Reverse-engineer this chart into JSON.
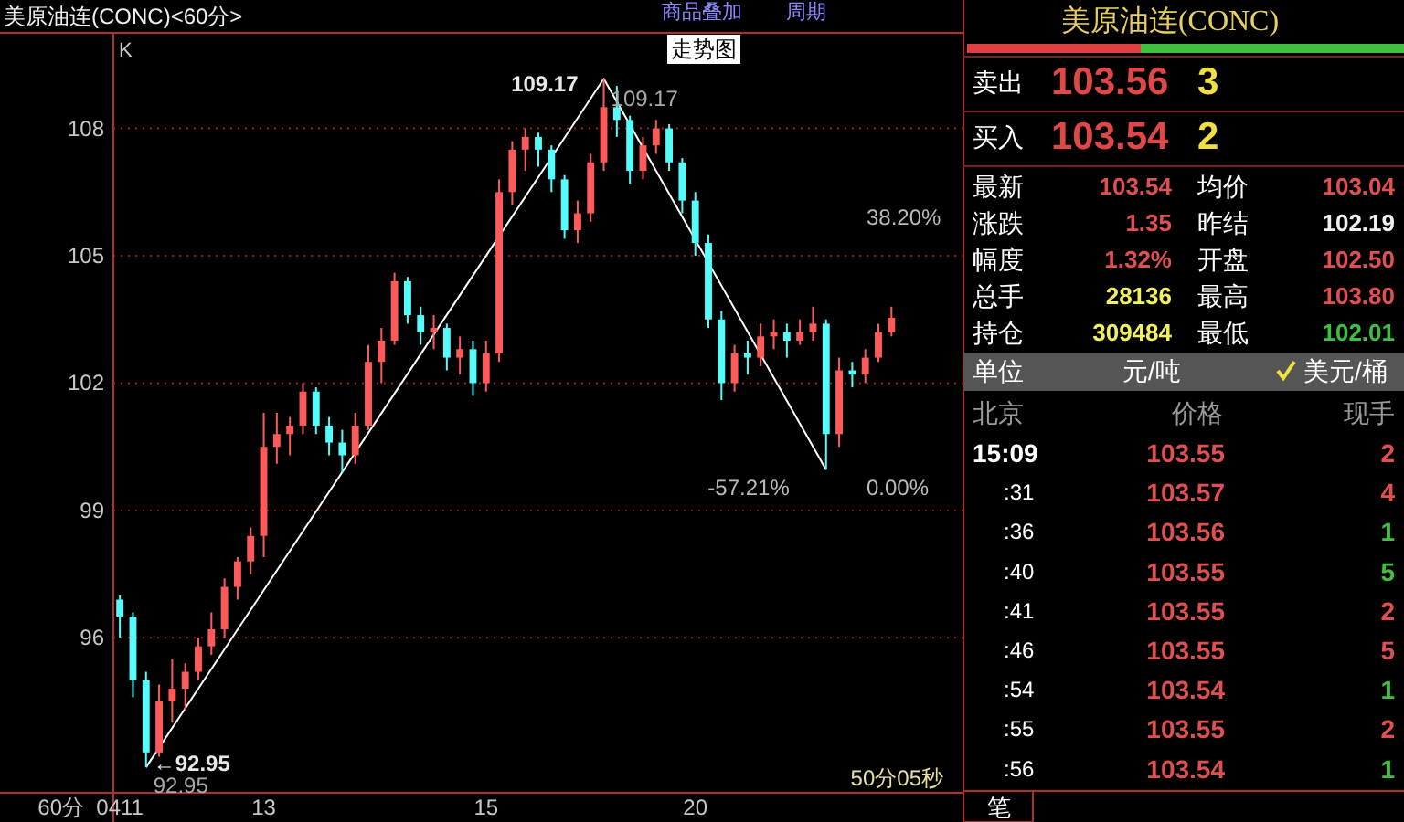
{
  "chart_data": [
    {
      "type": "candlestick",
      "title": "美原油连(CONC)<60分>",
      "xlabel": "60分",
      "categories": [
        "0411",
        null,
        null,
        null,
        null,
        null,
        null,
        null,
        null,
        null,
        null,
        "13",
        null,
        null,
        null,
        null,
        null,
        null,
        null,
        null,
        null,
        null,
        null,
        null,
        null,
        null,
        null,
        null,
        "15",
        null,
        null,
        null,
        null,
        null,
        null,
        null,
        null,
        null,
        null,
        null,
        null,
        null,
        null,
        null,
        "20",
        null,
        null,
        null,
        null,
        null,
        null,
        null,
        null,
        null,
        null,
        null,
        null,
        null,
        null,
        null,
        null,
        null,
        null,
        null,
        null
      ],
      "ohlc": [
        [
          96.9,
          97.0,
          96.0,
          96.5
        ],
        [
          96.5,
          96.6,
          94.6,
          95.0
        ],
        [
          95.0,
          95.2,
          92.95,
          93.3
        ],
        [
          93.3,
          94.9,
          93.2,
          94.5
        ],
        [
          94.5,
          95.5,
          94.0,
          94.8
        ],
        [
          94.8,
          95.4,
          94.3,
          95.2
        ],
        [
          95.2,
          96.0,
          95.0,
          95.8
        ],
        [
          95.8,
          96.6,
          95.6,
          96.2
        ],
        [
          96.2,
          97.4,
          96.0,
          97.2
        ],
        [
          97.2,
          97.9,
          96.9,
          97.8
        ],
        [
          97.8,
          98.6,
          97.5,
          98.4
        ],
        [
          98.4,
          101.3,
          97.9,
          100.5
        ],
        [
          100.5,
          101.3,
          100.1,
          100.8
        ],
        [
          100.8,
          101.2,
          100.3,
          101.0
        ],
        [
          101.0,
          102.0,
          100.8,
          101.8
        ],
        [
          101.8,
          101.9,
          100.8,
          101.0
        ],
        [
          101.0,
          101.2,
          100.3,
          100.6
        ],
        [
          100.6,
          100.9,
          99.9,
          100.3
        ],
        [
          100.3,
          101.3,
          100.1,
          101.0
        ],
        [
          101.0,
          102.9,
          100.9,
          102.5
        ],
        [
          102.5,
          103.3,
          102.0,
          103.0
        ],
        [
          103.0,
          104.6,
          102.9,
          104.4
        ],
        [
          104.4,
          104.5,
          103.4,
          103.6
        ],
        [
          103.6,
          103.8,
          102.9,
          103.2
        ],
        [
          103.2,
          103.6,
          102.8,
          103.3
        ],
        [
          103.3,
          103.4,
          102.3,
          102.6
        ],
        [
          102.6,
          103.1,
          102.2,
          102.8
        ],
        [
          102.8,
          103.0,
          101.7,
          102.0
        ],
        [
          102.0,
          103.0,
          101.8,
          102.7
        ],
        [
          102.7,
          106.8,
          102.5,
          106.5
        ],
        [
          106.5,
          107.7,
          106.2,
          107.5
        ],
        [
          107.5,
          108.0,
          107.0,
          107.8
        ],
        [
          107.8,
          107.9,
          107.1,
          107.5
        ],
        [
          107.5,
          107.6,
          106.5,
          106.8
        ],
        [
          106.8,
          106.9,
          105.4,
          105.6
        ],
        [
          105.6,
          106.3,
          105.3,
          106.0
        ],
        [
          106.0,
          107.4,
          105.8,
          107.2
        ],
        [
          107.2,
          109.17,
          107.0,
          108.5
        ],
        [
          108.5,
          109.0,
          107.8,
          108.2
        ],
        [
          108.2,
          108.3,
          106.7,
          107.0
        ],
        [
          107.0,
          107.8,
          106.8,
          107.6
        ],
        [
          107.6,
          108.2,
          107.4,
          108.0
        ],
        [
          108.0,
          108.1,
          107.0,
          107.2
        ],
        [
          107.2,
          107.3,
          106.0,
          106.3
        ],
        [
          106.3,
          106.5,
          105.0,
          105.3
        ],
        [
          105.3,
          105.5,
          103.3,
          103.5
        ],
        [
          103.5,
          103.7,
          101.6,
          102.0
        ],
        [
          102.0,
          102.9,
          101.8,
          102.7
        ],
        [
          102.7,
          103.0,
          102.2,
          102.6
        ],
        [
          102.6,
          103.4,
          102.4,
          103.1
        ],
        [
          103.1,
          103.5,
          102.8,
          103.2
        ],
        [
          103.2,
          103.4,
          102.6,
          103.0
        ],
        [
          103.0,
          103.5,
          102.9,
          103.2
        ],
        [
          103.2,
          103.8,
          103.0,
          103.4
        ],
        [
          103.4,
          103.5,
          99.96,
          100.8
        ],
        [
          100.8,
          102.6,
          100.5,
          102.3
        ],
        [
          102.3,
          102.5,
          101.9,
          102.2
        ],
        [
          102.2,
          102.8,
          102.0,
          102.6
        ],
        [
          102.6,
          103.4,
          102.5,
          103.2
        ],
        [
          103.2,
          103.8,
          103.1,
          103.54
        ],
        null,
        null,
        null,
        null,
        null
      ],
      "series": [
        {
          "type": "line",
          "color": "#ffffff",
          "values": [
            null,
            null,
            92.95,
            null,
            null,
            null,
            null,
            null,
            null,
            null,
            null,
            null,
            null,
            null,
            null,
            null,
            null,
            null,
            null,
            null,
            null,
            null,
            null,
            null,
            null,
            null,
            null,
            null,
            null,
            null,
            null,
            null,
            null,
            null,
            null,
            null,
            null,
            109.17,
            null,
            null,
            null,
            null,
            null,
            null,
            null,
            null,
            null,
            null,
            null,
            null,
            null,
            null,
            null,
            null,
            99.96,
            null,
            null,
            null,
            null,
            null,
            null,
            null,
            null,
            null,
            null
          ]
        }
      ],
      "ylim": [
        92.35,
        110.25
      ],
      "yticks": [
        96,
        99,
        102,
        105,
        108
      ],
      "grid": "y",
      "annotations": [
        "K",
        "109.17",
        "109.17",
        "←92.95",
        "92.95",
        "-57.21%",
        "38.20%",
        "0.00%",
        "50分05秒",
        "商品叠加",
        "走势图",
        "周期"
      ]
    },
    {
      "type": "other",
      "title": "美原油连(CONC)",
      "annotations": [
        "卖出",
        "103.56",
        "3",
        "买入",
        "103.54",
        "2",
        "最新",
        "103.54",
        "均价",
        "103.04",
        "涨跌",
        "1.35",
        "昨结",
        "102.19",
        "幅度",
        "1.32%",
        "开盘",
        "102.50",
        "总手",
        "28136",
        "最高",
        "103.80",
        "持仓",
        "309484",
        "最低",
        "102.01",
        "单位",
        "元/吨",
        "美元/桶",
        "北京",
        "价格",
        "现手",
        "15:09",
        "103.55",
        "2",
        ":31",
        "103.57",
        "4",
        ":36",
        "103.56",
        "1",
        ":40",
        "103.55",
        "5",
        ":41",
        "103.55",
        "2",
        ":46",
        "103.55",
        "5",
        ":54",
        "103.54",
        "1",
        ":55",
        "103.55",
        "2",
        ":56",
        "103.54",
        "1",
        "笔"
      ]
    }
  ]
}
